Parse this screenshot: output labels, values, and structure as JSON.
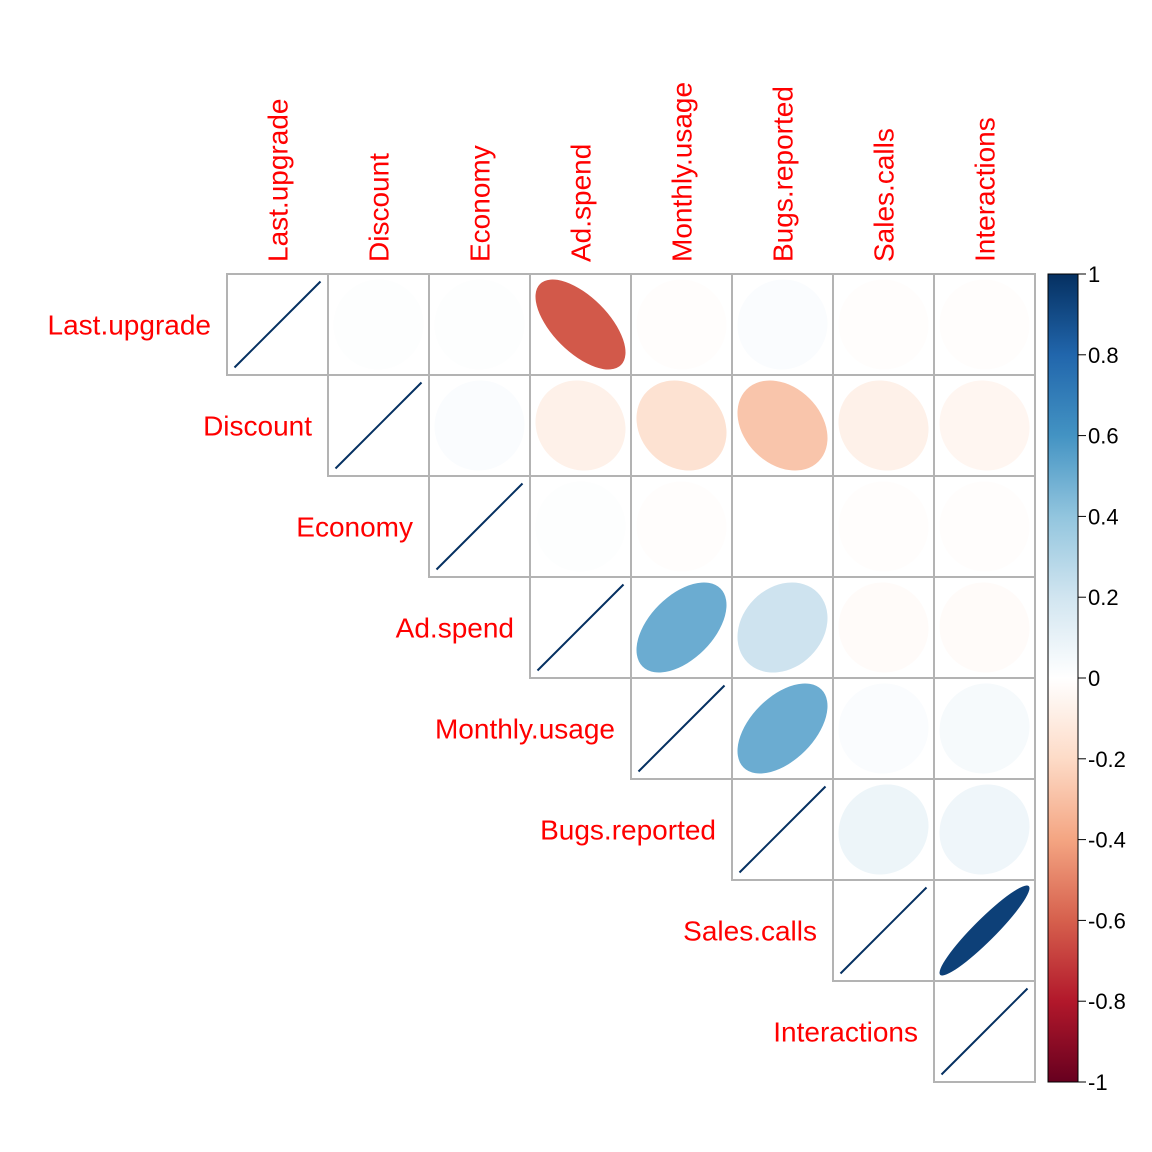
{
  "chart_data": {
    "type": "heatmap",
    "title": "",
    "variables": [
      "Last.upgrade",
      "Discount",
      "Economy",
      "Ad.spend",
      "Monthly.usage",
      "Bugs.reported",
      "Sales.calls",
      "Interactions"
    ],
    "layout": "upper-triangle",
    "glyph": "ellipse",
    "matrix": [
      [
        1.0,
        0.01,
        0.01,
        -0.62,
        -0.01,
        0.02,
        -0.01,
        -0.01
      ],
      [
        0.01,
        1.0,
        0.02,
        -0.08,
        -0.16,
        -0.28,
        -0.08,
        -0.05
      ],
      [
        0.01,
        0.02,
        1.0,
        0.01,
        -0.01,
        0.0,
        -0.01,
        -0.01
      ],
      [
        -0.62,
        -0.08,
        0.01,
        1.0,
        0.5,
        0.21,
        -0.02,
        -0.02
      ],
      [
        -0.01,
        -0.16,
        -0.01,
        0.5,
        1.0,
        0.5,
        0.02,
        0.04
      ],
      [
        0.02,
        -0.28,
        0.0,
        0.21,
        0.5,
        1.0,
        0.08,
        0.07
      ],
      [
        -0.01,
        -0.08,
        -0.01,
        -0.02,
        0.02,
        0.08,
        1.0,
        0.94
      ],
      [
        -0.01,
        -0.05,
        -0.01,
        -0.02,
        0.04,
        0.07,
        0.94,
        1.0
      ]
    ],
    "colorbar": {
      "min": -1,
      "max": 1,
      "ticks": [
        "1",
        "0.8",
        "0.6",
        "0.4",
        "0.2",
        "0",
        "-0.2",
        "-0.4",
        "-0.6",
        "-0.8",
        "-1"
      ]
    },
    "colors": {
      "label": "#ff0000",
      "grid": "#b3b3b3",
      "diagonal": "#053061",
      "palette": [
        "#67001F",
        "#B2182B",
        "#D6604D",
        "#F4A582",
        "#FDDBC7",
        "#FFFFFF",
        "#D1E5F0",
        "#92C5DE",
        "#4393C3",
        "#2166AC",
        "#053061"
      ]
    }
  }
}
